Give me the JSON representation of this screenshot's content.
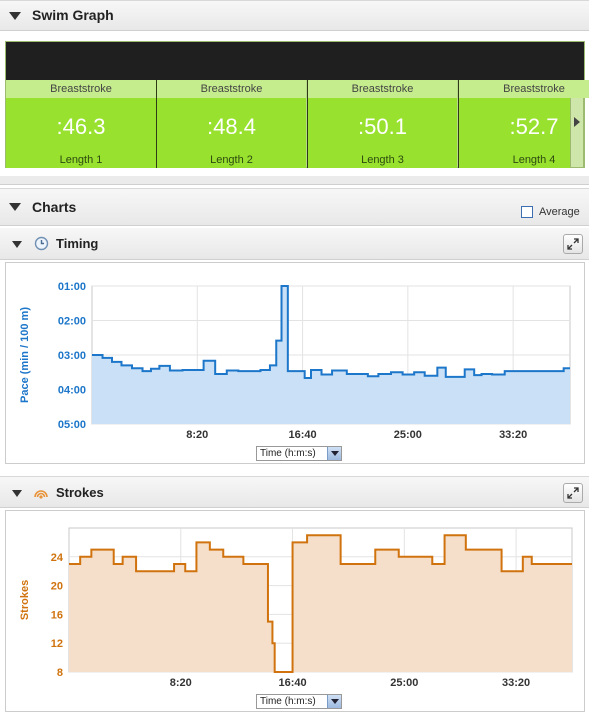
{
  "swim_graph": {
    "title": "Swim Graph",
    "laps": [
      {
        "stroke": "Breaststroke",
        "time": ":46.3",
        "length": "Length 1"
      },
      {
        "stroke": "Breaststroke",
        "time": ":48.4",
        "length": "Length 2"
      },
      {
        "stroke": "Breaststroke",
        "time": ":50.1",
        "length": "Length 3"
      },
      {
        "stroke": "Breaststroke",
        "time": ":52.7",
        "length": "Length 4"
      }
    ]
  },
  "charts_section": {
    "title": "Charts",
    "average_label": "Average",
    "average_checked": false
  },
  "timing": {
    "title": "Timing",
    "icon": "clock-icon",
    "select_value": "Time (h:m:s)"
  },
  "strokes": {
    "title": "Strokes",
    "icon": "strokes-icon",
    "select_value": "Time (h:m:s)"
  },
  "colors": {
    "timing_line": "#1c76c9",
    "timing_fill": "#c9e0f6",
    "strokes_line": "#d0730e",
    "strokes_fill": "#f6dfca",
    "lap_green": "#98e22f"
  },
  "chart_data": [
    {
      "type": "area",
      "title": "Timing",
      "ylabel": "Pace (min / 100 m)",
      "xlabel": "",
      "y_reversed": true,
      "x_ticks": [
        "8:20",
        "16:40",
        "25:00",
        "33:20"
      ],
      "x_tick_seconds": [
        500,
        1000,
        1500,
        2000
      ],
      "y_ticks": [
        "01:00",
        "02:00",
        "03:00",
        "04:00",
        "05:00"
      ],
      "y_tick_seconds": [
        60,
        120,
        180,
        240,
        300
      ],
      "xlim": [
        0,
        2270
      ],
      "ylim": [
        60,
        300
      ],
      "x": [
        0,
        50,
        95,
        140,
        190,
        240,
        280,
        320,
        370,
        430,
        530,
        585,
        640,
        695,
        800,
        845,
        875,
        900,
        930,
        975,
        1010,
        1040,
        1090,
        1140,
        1210,
        1260,
        1310,
        1360,
        1420,
        1475,
        1530,
        1580,
        1640,
        1680,
        1710,
        1770,
        1815,
        1850,
        1900,
        1960,
        2060,
        2120,
        2165,
        2240,
        2270
      ],
      "y": [
        180,
        185,
        192,
        198,
        203,
        208,
        204,
        199,
        207,
        206,
        190,
        213,
        207,
        208,
        206,
        198,
        155,
        60,
        208,
        208,
        220,
        206,
        214,
        207,
        213,
        213,
        217,
        213,
        210,
        214,
        210,
        216,
        202,
        218,
        218,
        205,
        215,
        213,
        214,
        208,
        208,
        208,
        208,
        203,
        203
      ]
    },
    {
      "type": "area",
      "title": "Strokes",
      "ylabel": "Strokes",
      "xlabel": "",
      "x_ticks": [
        "8:20",
        "16:40",
        "25:00",
        "33:20"
      ],
      "x_tick_seconds": [
        500,
        1000,
        1500,
        2000
      ],
      "y_ticks": [
        "8",
        "12",
        "16",
        "20",
        "24"
      ],
      "y_tick_values": [
        8,
        12,
        16,
        20,
        24
      ],
      "xlim": [
        0,
        2250
      ],
      "ylim": [
        8,
        28
      ],
      "x": [
        0,
        50,
        100,
        200,
        240,
        300,
        470,
        520,
        570,
        630,
        690,
        780,
        890,
        910,
        920,
        940,
        960,
        1000,
        1065,
        1215,
        1370,
        1475,
        1625,
        1680,
        1775,
        1825,
        1875,
        1935,
        2030,
        2070,
        2115,
        2250
      ],
      "y": [
        23,
        24,
        25,
        23,
        24,
        22,
        23,
        22,
        26,
        25,
        24,
        23,
        15,
        12,
        8,
        8,
        8,
        26,
        27,
        23,
        25,
        24,
        23,
        27,
        25,
        25,
        25,
        22,
        24,
        23,
        23,
        23
      ]
    }
  ]
}
